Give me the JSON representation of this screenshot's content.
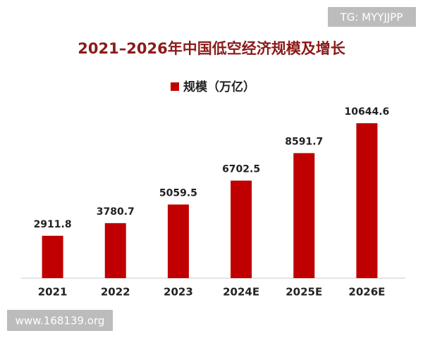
{
  "chart_data": {
    "type": "bar",
    "title": "2021–2026年中国低空经济规模及增长",
    "legend": "规模（万亿）",
    "categories": [
      "2021",
      "2022",
      "2023",
      "2024E",
      "2025E",
      "2026E"
    ],
    "values": [
      2911.8,
      3780.7,
      5059.5,
      6702.5,
      8591.7,
      10644.6
    ],
    "color": "#c00000",
    "ylim": [
      0,
      12000
    ]
  },
  "watermarks": [
    "TG: MYYJJPP",
    "www.168139.org"
  ]
}
